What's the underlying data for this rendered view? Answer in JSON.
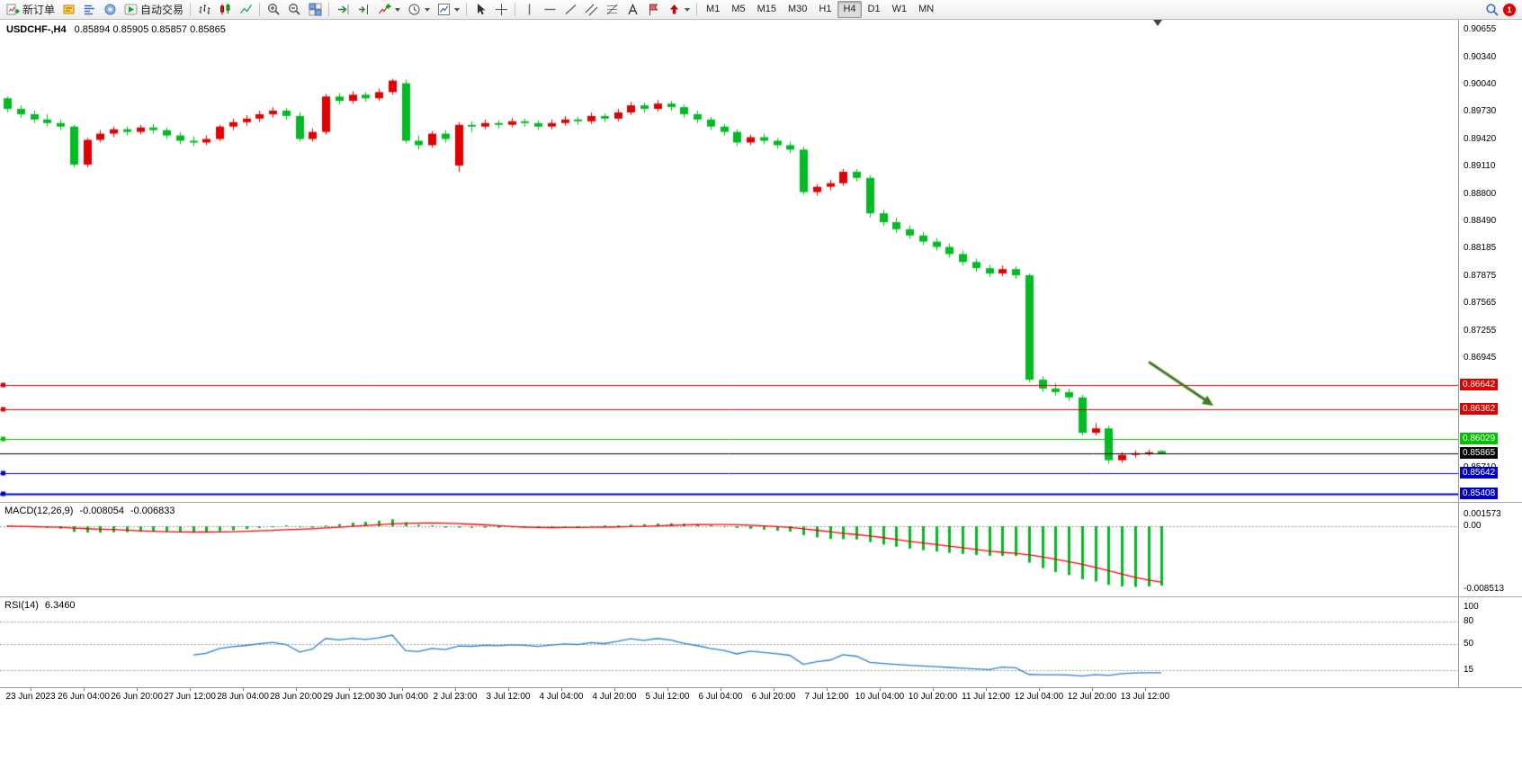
{
  "toolbar": {
    "new_order_label": "新订单",
    "auto_trading_label": "自动交易",
    "timeframes": [
      "M1",
      "M5",
      "M15",
      "M30",
      "H1",
      "H4",
      "D1",
      "W1",
      "MN"
    ],
    "active_timeframe": "H4",
    "notification_count": "1"
  },
  "chart_data": {
    "type": "candlestick",
    "symbol_period": "USDCHF-,H4",
    "ohlc_text": "0.85894 0.85905 0.85857 0.85865",
    "colors": {
      "up": "#e00000",
      "down": "#00bb22",
      "macd_hist": "#00bb22",
      "macd_signal": "#ff0000",
      "rsi_line": "#2a7fd4"
    },
    "price_axis_ticks": [
      "0.90655",
      "0.90340",
      "0.90040",
      "0.89730",
      "0.89420",
      "0.89110",
      "0.88800",
      "0.88490",
      "0.88185",
      "0.87875",
      "0.87565",
      "0.87255",
      "0.86945",
      "0.85710"
    ],
    "price_lines": [
      {
        "value": "0.86642",
        "color": "#e00000",
        "width": 1
      },
      {
        "value": "0.86362",
        "color": "#e00000",
        "width": 1
      },
      {
        "value": "0.86029",
        "color": "#00c000",
        "width": 1
      },
      {
        "value": "0.85642",
        "color": "#0000cc",
        "width": 1
      },
      {
        "value": "0.85408",
        "color": "#0000cc",
        "width": 2
      }
    ],
    "current_price": "0.85865",
    "annotation_arrow": {
      "color": "#3f7d20",
      "direction": "down-right"
    },
    "candles": [
      [
        0.8988,
        0.899,
        0.8972,
        0.8976
      ],
      [
        0.8976,
        0.898,
        0.8966,
        0.897
      ],
      [
        0.897,
        0.8974,
        0.896,
        0.8964
      ],
      [
        0.8964,
        0.897,
        0.8956,
        0.896
      ],
      [
        0.896,
        0.8964,
        0.8952,
        0.8956
      ],
      [
        0.8956,
        0.8958,
        0.891,
        0.8913
      ],
      [
        0.8913,
        0.8943,
        0.891,
        0.8941
      ],
      [
        0.8941,
        0.8952,
        0.8938,
        0.8948
      ],
      [
        0.8948,
        0.8956,
        0.8944,
        0.8953
      ],
      [
        0.8953,
        0.8956,
        0.8946,
        0.895
      ],
      [
        0.895,
        0.8958,
        0.8947,
        0.8955
      ],
      [
        0.8955,
        0.8959,
        0.8948,
        0.8952
      ],
      [
        0.8952,
        0.8955,
        0.8942,
        0.8946
      ],
      [
        0.8946,
        0.895,
        0.8936,
        0.894
      ],
      [
        0.894,
        0.8945,
        0.8934,
        0.8938
      ],
      [
        0.8938,
        0.8946,
        0.8935,
        0.8942
      ],
      [
        0.8942,
        0.8958,
        0.894,
        0.8956
      ],
      [
        0.8956,
        0.8965,
        0.8952,
        0.8961
      ],
      [
        0.8961,
        0.8969,
        0.8957,
        0.8965
      ],
      [
        0.8965,
        0.8974,
        0.8961,
        0.897
      ],
      [
        0.897,
        0.8978,
        0.8966,
        0.8974
      ],
      [
        0.8974,
        0.8977,
        0.8964,
        0.8968
      ],
      [
        0.8968,
        0.8972,
        0.8939,
        0.8942
      ],
      [
        0.8942,
        0.8954,
        0.8939,
        0.895
      ],
      [
        0.895,
        0.8993,
        0.8947,
        0.899
      ],
      [
        0.899,
        0.8994,
        0.8981,
        0.8985
      ],
      [
        0.8985,
        0.8996,
        0.8982,
        0.8992
      ],
      [
        0.8992,
        0.8995,
        0.8984,
        0.8988
      ],
      [
        0.8988,
        0.8999,
        0.8985,
        0.8995
      ],
      [
        0.8995,
        0.901,
        0.8992,
        0.9008
      ],
      [
        0.9005,
        0.9009,
        0.8937,
        0.894
      ],
      [
        0.894,
        0.8946,
        0.893,
        0.8935
      ],
      [
        0.8935,
        0.8951,
        0.8932,
        0.8948
      ],
      [
        0.8948,
        0.8952,
        0.8938,
        0.8942
      ],
      [
        0.8912,
        0.8961,
        0.8905,
        0.8958
      ],
      [
        0.8958,
        0.8962,
        0.895,
        0.8956
      ],
      [
        0.8956,
        0.8964,
        0.8953,
        0.896
      ],
      [
        0.896,
        0.8963,
        0.8954,
        0.8958
      ],
      [
        0.8958,
        0.8966,
        0.8955,
        0.8962
      ],
      [
        0.8962,
        0.8965,
        0.8956,
        0.896
      ],
      [
        0.896,
        0.8963,
        0.8952,
        0.8956
      ],
      [
        0.8956,
        0.8964,
        0.8953,
        0.896
      ],
      [
        0.896,
        0.8968,
        0.8957,
        0.8964
      ],
      [
        0.8964,
        0.8967,
        0.8958,
        0.8962
      ],
      [
        0.8962,
        0.8972,
        0.8959,
        0.8968
      ],
      [
        0.8968,
        0.8971,
        0.8961,
        0.8965
      ],
      [
        0.8965,
        0.8976,
        0.8962,
        0.8972
      ],
      [
        0.8972,
        0.8984,
        0.8969,
        0.898
      ],
      [
        0.898,
        0.8983,
        0.8972,
        0.8976
      ],
      [
        0.8976,
        0.8986,
        0.8973,
        0.8982
      ],
      [
        0.8982,
        0.8985,
        0.8974,
        0.8978
      ],
      [
        0.8978,
        0.8981,
        0.8966,
        0.897
      ],
      [
        0.897,
        0.8974,
        0.896,
        0.8964
      ],
      [
        0.8964,
        0.8967,
        0.8952,
        0.8956
      ],
      [
        0.8956,
        0.8959,
        0.8946,
        0.895
      ],
      [
        0.895,
        0.8953,
        0.8934,
        0.8938
      ],
      [
        0.8938,
        0.8947,
        0.8935,
        0.8944
      ],
      [
        0.8944,
        0.8948,
        0.8936,
        0.894
      ],
      [
        0.894,
        0.8943,
        0.8931,
        0.8935
      ],
      [
        0.8935,
        0.8939,
        0.8926,
        0.893
      ],
      [
        0.893,
        0.8933,
        0.8879,
        0.8882
      ],
      [
        0.8882,
        0.8891,
        0.8878,
        0.8888
      ],
      [
        0.8888,
        0.8896,
        0.8884,
        0.8892
      ],
      [
        0.8892,
        0.8908,
        0.8889,
        0.8905
      ],
      [
        0.8905,
        0.8908,
        0.8894,
        0.8898
      ],
      [
        0.8898,
        0.8901,
        0.8853,
        0.8858
      ],
      [
        0.8858,
        0.8862,
        0.8844,
        0.8848
      ],
      [
        0.8848,
        0.8853,
        0.8836,
        0.884
      ],
      [
        0.884,
        0.8844,
        0.8829,
        0.8833
      ],
      [
        0.8833,
        0.8837,
        0.8822,
        0.8826
      ],
      [
        0.8826,
        0.883,
        0.8816,
        0.882
      ],
      [
        0.882,
        0.8824,
        0.8808,
        0.8812
      ],
      [
        0.8812,
        0.8816,
        0.8799,
        0.8803
      ],
      [
        0.8803,
        0.8807,
        0.8792,
        0.8796
      ],
      [
        0.8796,
        0.88,
        0.8786,
        0.879
      ],
      [
        0.879,
        0.8799,
        0.8787,
        0.8795
      ],
      [
        0.8795,
        0.8798,
        0.8784,
        0.8788
      ],
      [
        0.8788,
        0.879,
        0.8667,
        0.867
      ],
      [
        0.867,
        0.8674,
        0.8656,
        0.866
      ],
      [
        0.866,
        0.8666,
        0.8652,
        0.8656
      ],
      [
        0.8656,
        0.866,
        0.8646,
        0.865
      ],
      [
        0.865,
        0.8653,
        0.8607,
        0.861
      ],
      [
        0.861,
        0.8621,
        0.8607,
        0.8615
      ],
      [
        0.8615,
        0.8618,
        0.8575,
        0.8579
      ],
      [
        0.8579,
        0.8588,
        0.8576,
        0.8585
      ],
      [
        0.8585,
        0.859,
        0.8582,
        0.8587
      ],
      [
        0.8587,
        0.8591,
        0.8584,
        0.8588
      ],
      [
        0.85894,
        0.85905,
        0.85857,
        0.85865
      ]
    ],
    "macd": {
      "label": "MACD(12,26,9)",
      "value_main": "-0.008054",
      "value_signal": "-0.006833",
      "fast": 12,
      "slow": 26,
      "signal_period": 9,
      "axis_ticks": [
        "0.001573",
        "0.00",
        "-0.008513"
      ]
    },
    "rsi": {
      "label": "RSI(14)",
      "value": "6.3460",
      "period": 14,
      "levels": [
        80,
        50,
        15
      ],
      "axis_ticks": [
        "100",
        "80",
        "50",
        "15"
      ]
    },
    "time_labels": [
      "23 Jun 2023",
      "26 Jun 04:00",
      "26 Jun 20:00",
      "27 Jun 12:00",
      "28 Jun 04:00",
      "28 Jun 20:00",
      "29 Jun 12:00",
      "30 Jun 04:00",
      "2 Jul 23:00",
      "3 Jul 12:00",
      "4 Jul 04:00",
      "4 Jul 20:00",
      "5 Jul 12:00",
      "6 Jul 04:00",
      "6 Jul 20:00",
      "7 Jul 12:00",
      "10 Jul 04:00",
      "10 Jul 20:00",
      "11 Jul 12:00",
      "12 Jul 04:00",
      "12 Jul 20:00",
      "13 Jul 12:00"
    ]
  }
}
